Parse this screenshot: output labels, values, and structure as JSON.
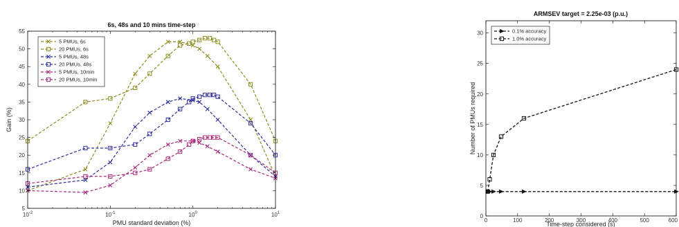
{
  "chart_data": [
    {
      "type": "line",
      "title": "6s, 48s and 10 mins time-step",
      "xlabel": "PMU standard deviation (%)",
      "ylabel": "Gain (%)",
      "x_scale": "log",
      "xlim": [
        0.01,
        10
      ],
      "ylim": [
        5,
        55
      ],
      "xticks": [
        "10^-2",
        "10^-1",
        "10^0",
        "10^1"
      ],
      "yticks": [
        5,
        10,
        15,
        20,
        25,
        30,
        35,
        40,
        45,
        50,
        55
      ],
      "legend_position": "top-left",
      "grid": false,
      "series": [
        {
          "name": "5 PMUs, 6s",
          "color": "#8c8c1e",
          "marker": "x",
          "x": [
            0.01,
            0.05,
            0.1,
            0.2,
            0.3,
            0.5,
            0.7,
            1.0,
            1.2,
            1.5,
            2.0,
            5.0,
            10.0
          ],
          "y": [
            10,
            16,
            29,
            43,
            48,
            52,
            52,
            51,
            50,
            48,
            45,
            30,
            14
          ]
        },
        {
          "name": "20 PMUs, 6s",
          "color": "#8c8c1e",
          "marker": "square",
          "x": [
            0.01,
            0.05,
            0.1,
            0.2,
            0.3,
            0.5,
            0.7,
            0.9,
            1.0,
            1.2,
            1.4,
            1.6,
            1.8,
            2.0,
            5.0,
            10.0
          ],
          "y": [
            24,
            35,
            36,
            39,
            43,
            48,
            51,
            51.5,
            52,
            52.5,
            53,
            53,
            52.5,
            52,
            40,
            24
          ]
        },
        {
          "name": "5 PMUs, 48s",
          "color": "#2d2d9c",
          "marker": "x",
          "x": [
            0.01,
            0.05,
            0.1,
            0.2,
            0.3,
            0.5,
            0.7,
            1.0,
            1.2,
            1.5,
            2.0,
            5.0,
            10.0
          ],
          "y": [
            11,
            13,
            18,
            28,
            32,
            35,
            36,
            35.5,
            35,
            33,
            30,
            20,
            14
          ]
        },
        {
          "name": "20 PMUs, 48s",
          "color": "#2d2d9c",
          "marker": "square",
          "x": [
            0.01,
            0.05,
            0.1,
            0.2,
            0.3,
            0.5,
            0.7,
            0.9,
            1.0,
            1.2,
            1.4,
            1.6,
            1.8,
            2.0,
            5.0,
            10.0
          ],
          "y": [
            16,
            22,
            22,
            23,
            26,
            30,
            33,
            35,
            36,
            36.5,
            37,
            37,
            37,
            36.5,
            29,
            20
          ]
        },
        {
          "name": "5 PMUs, 10min",
          "color": "#a8287a",
          "marker": "x",
          "x": [
            0.01,
            0.05,
            0.1,
            0.2,
            0.3,
            0.5,
            0.7,
            1.0,
            1.2,
            1.5,
            2.0,
            5.0,
            10.0
          ],
          "y": [
            10,
            9.5,
            11.5,
            16.5,
            20,
            23,
            24,
            24,
            23.5,
            22.5,
            21,
            16,
            13.5
          ]
        },
        {
          "name": "20 PMUs, 10min",
          "color": "#a8287a",
          "marker": "square",
          "x": [
            0.01,
            0.05,
            0.1,
            0.2,
            0.3,
            0.5,
            0.7,
            0.9,
            1.0,
            1.2,
            1.4,
            1.6,
            1.8,
            2.0,
            5.0,
            10.0
          ],
          "y": [
            12,
            14,
            14,
            15,
            16,
            19,
            21,
            23,
            24,
            24.5,
            25,
            25,
            25,
            25,
            20,
            15
          ]
        }
      ]
    },
    {
      "type": "line",
      "title": "ARMSEV target = 2.25e-03 (p.u.)",
      "xlabel": "Time-step considered (s)",
      "ylabel": "Number of PMUs required",
      "xlim": [
        0,
        600
      ],
      "ylim": [
        0,
        32
      ],
      "xticks": [
        0,
        100,
        200,
        300,
        400,
        500,
        600
      ],
      "yticks": [
        0,
        5,
        10,
        15,
        20,
        25,
        30
      ],
      "legend_position": "top-left",
      "grid": false,
      "series": [
        {
          "name": "0.1% accuracy",
          "color": "#111111",
          "marker": "triangle-right",
          "x": [
            6,
            12,
            24,
            48,
            120,
            600
          ],
          "y": [
            4,
            4,
            4,
            4,
            4,
            4
          ]
        },
        {
          "name": "1.0% accuracy",
          "color": "#111111",
          "marker": "square",
          "x": [
            6,
            12,
            24,
            48,
            120,
            600
          ],
          "y": [
            4,
            6,
            10,
            13,
            16,
            24
          ]
        }
      ]
    }
  ]
}
